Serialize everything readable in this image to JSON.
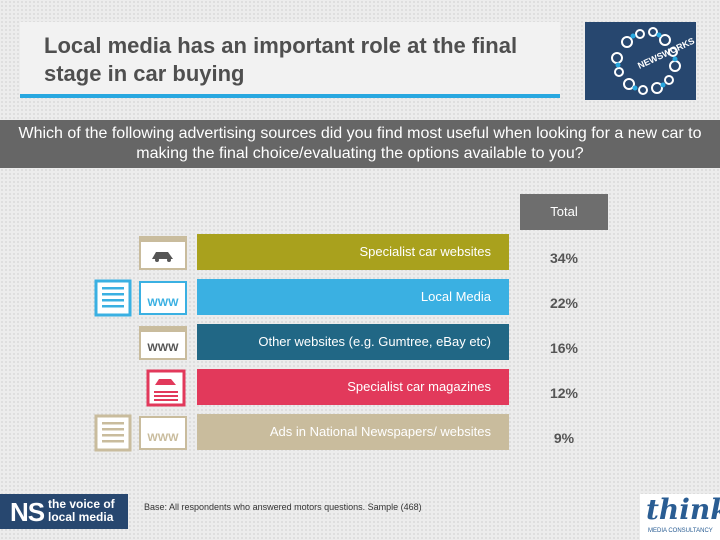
{
  "slide": {
    "title": "Local media has an important role at the final stage in car buying",
    "question": "Which of the following advertising sources did you find most useful when looking for a new car to making the final choice/evaluating the options available to you?",
    "total_label": "Total",
    "base_note": "Base: All respondents who answered motors questions. Sample (468)",
    "ns_label": "NS",
    "ns_tagline": "the voice of local media",
    "think_label": "think",
    "think_sub": "MEDIA CONSULTANCY",
    "logo_text": "NEWSWORKS CATALYST"
  },
  "chart_data": {
    "type": "bar",
    "orientation": "horizontal",
    "categories": [
      "Specialist car websites",
      "Local Media",
      "Other websites (e.g. Gumtree, eBay etc)",
      "Specialist car magazines",
      "Ads in National Newspapers/ websites"
    ],
    "series": [
      {
        "name": "Total",
        "values": [
          34,
          22,
          16,
          12,
          9
        ]
      }
    ],
    "value_labels": [
      "34%",
      "22%",
      "16%",
      "12%",
      "9%"
    ],
    "colors": [
      "#a9a11d",
      "#3ab0e2",
      "#216785",
      "#e2395b",
      "#c9bc9d"
    ]
  },
  "icons": [
    "car-website-icon",
    "newspaper-www-icon",
    "www-website-icon",
    "car-magazine-icon",
    "newspaper-www-icon"
  ]
}
